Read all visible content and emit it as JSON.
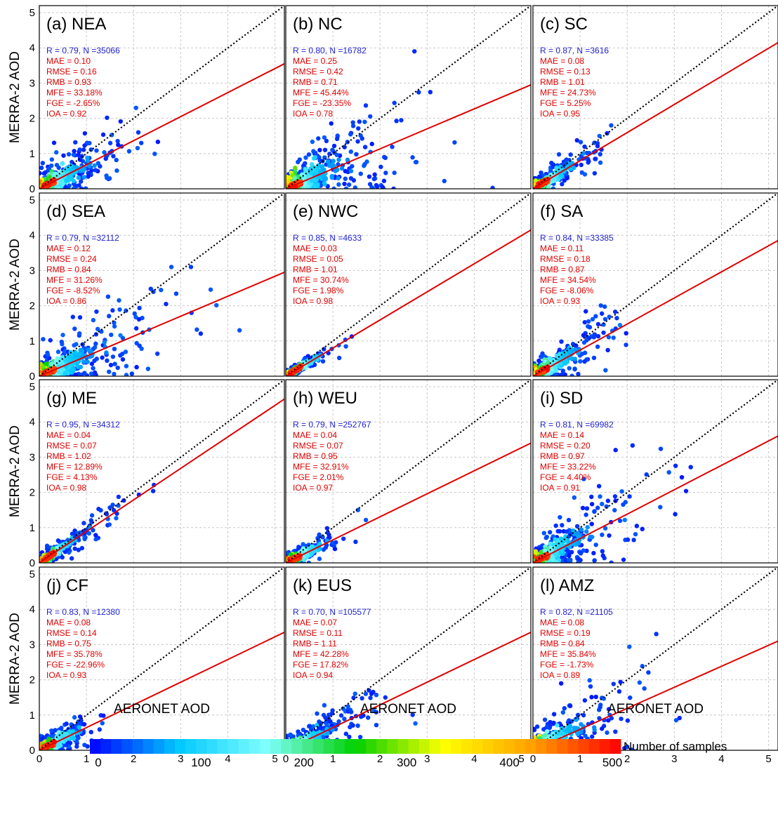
{
  "chart_data": {
    "type": "scatter",
    "xlabel": "AERONET AOD",
    "ylabel": "MERRA-2 AOD",
    "xlim": [
      0,
      5.2
    ],
    "ylim": [
      0,
      5.2
    ],
    "ticks": [
      "0",
      "1",
      "2",
      "3",
      "4",
      "5"
    ],
    "grid": true,
    "colorbar": {
      "label": "Number of samples",
      "range": [
        0,
        500
      ],
      "tick_labels": [
        "0",
        "100",
        "200",
        "300",
        "400",
        "500"
      ],
      "colors": [
        "#0000ff",
        "#00c8ff",
        "#80ffff",
        "#00d000",
        "#ffff00",
        "#ffa000",
        "#ff0000"
      ]
    },
    "colors": {
      "one_to_one_line": "#000000",
      "fit_line": "#e00000",
      "r_n_text": "#1f1fd0",
      "stat_text": "#e00000"
    },
    "panels": [
      {
        "title": "(a) NEA",
        "r_n": "R = 0.79, N =35066",
        "stats": [
          "MAE = 0.10",
          "RMSE = 0.16",
          "RMB = 0.93",
          "MFE = 33.18%",
          "FGE = -2.65%",
          "IOA = 0.92"
        ],
        "fit_end_y": 3.55,
        "max_x": 3.3,
        "max_y": 2.8,
        "spread": 0.7
      },
      {
        "title": "(b) NC",
        "r_n": "R = 0.80, N =16782",
        "stats": [
          "MAE = 0.25",
          "RMSE = 0.42",
          "RMB = 0.71",
          "MFE = 45.44%",
          "FGE = -23.35%",
          "IOA = 0.78"
        ],
        "fit_end_y": 2.95,
        "max_x": 4.9,
        "max_y": 4.4,
        "spread": 0.9
      },
      {
        "title": "(c) SC",
        "r_n": "R = 0.87, N =3616",
        "stats": [
          "MAE = 0.08",
          "RMSE = 0.13",
          "RMB = 1.01",
          "MFE = 24.73%",
          "FGE = 5.25%",
          "IOA = 0.95"
        ],
        "fit_end_y": 4.15,
        "max_x": 2.2,
        "max_y": 1.8,
        "spread": 0.4
      },
      {
        "title": "(d) SEA",
        "r_n": "R = 0.79, N =32112",
        "stats": [
          "MAE = 0.12",
          "RMSE = 0.24",
          "RMB = 0.84",
          "MFE = 31.26%",
          "FGE = -8.52%",
          "IOA = 0.86"
        ],
        "fit_end_y": 2.95,
        "max_x": 5.0,
        "max_y": 3.1,
        "spread": 0.8
      },
      {
        "title": "(e) NWC",
        "r_n": "R = 0.85, N =4633",
        "stats": [
          "MAE = 0.03",
          "RMSE = 0.05",
          "RMB = 1.01",
          "MFE = 30.74%",
          "FGE = 1.98%",
          "IOA = 0.98"
        ],
        "fit_end_y": 4.15,
        "max_x": 1.4,
        "max_y": 1.2,
        "spread": 0.2
      },
      {
        "title": "(f) SA",
        "r_n": "R = 0.84, N =33385",
        "stats": [
          "MAE = 0.11",
          "RMSE = 0.18",
          "RMB = 0.87",
          "MFE = 34.54%",
          "FGE = -8.06%",
          "IOA = 0.93"
        ],
        "fit_end_y": 3.85,
        "max_x": 2.6,
        "max_y": 3.1,
        "spread": 0.6
      },
      {
        "title": "(g) ME",
        "r_n": "R = 0.95, N =34312",
        "stats": [
          "MAE = 0.04",
          "RMSE = 0.07",
          "RMB = 1.02",
          "MFE = 12.89%",
          "FGE = 4.13%",
          "IOA = 0.98"
        ],
        "fit_end_y": 4.65,
        "max_x": 2.7,
        "max_y": 2.5,
        "spread": 0.3
      },
      {
        "title": "(h) WEU",
        "r_n": "R = 0.79, N =252767",
        "stats": [
          "MAE = 0.04",
          "RMSE = 0.07",
          "RMB = 0.95",
          "MFE = 32.91%",
          "FGE = 2.01%",
          "IOA = 0.97"
        ],
        "fit_end_y": 3.4,
        "max_x": 1.7,
        "max_y": 1.5,
        "spread": 0.35
      },
      {
        "title": "(i) SD",
        "r_n": "R = 0.81, N =69982",
        "stats": [
          "MAE = 0.14",
          "RMSE = 0.20",
          "RMB = 0.97",
          "MFE = 33.22%",
          "FGE = 4.40%",
          "IOA = 0.91"
        ],
        "fit_end_y": 3.6,
        "max_x": 4.1,
        "max_y": 4.6,
        "spread": 0.8
      },
      {
        "title": "(j) CF",
        "r_n": "R = 0.83, N =12380",
        "stats": [
          "MAE = 0.08",
          "RMSE = 0.14",
          "RMB = 0.75",
          "MFE = 35.78%",
          "FGE = -22.96%",
          "IOA = 0.93"
        ],
        "fit_end_y": 3.35,
        "max_x": 1.9,
        "max_y": 1.6,
        "spread": 0.45
      },
      {
        "title": "(k) EUS",
        "r_n": "R = 0.70, N =105577",
        "stats": [
          "MAE = 0.07",
          "RMSE = 0.11",
          "RMB = 1.11",
          "MFE = 42.28%",
          "FGE = 17.82%",
          "IOA = 0.94"
        ],
        "fit_end_y": 3.35,
        "max_x": 3.3,
        "max_y": 2.9,
        "spread": 0.45
      },
      {
        "title": "(l) AMZ",
        "r_n": "R = 0.82, N =21105",
        "stats": [
          "MAE = 0.08",
          "RMSE = 0.19",
          "RMB = 0.84",
          "MFE = 35.84%",
          "FGE = -1.73%",
          "IOA = 0.89"
        ],
        "fit_end_y": 3.1,
        "max_x": 4.0,
        "max_y": 3.3,
        "spread": 0.8
      }
    ]
  }
}
